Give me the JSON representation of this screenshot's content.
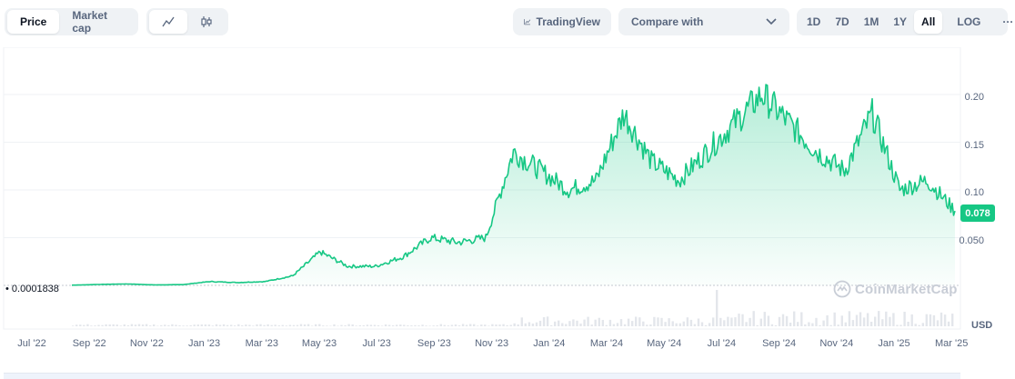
{
  "toolbar": {
    "chart_types": [
      {
        "label": "Price",
        "active": true
      },
      {
        "label": "Market cap",
        "active": false
      }
    ],
    "styles": [
      {
        "icon": "line-chart-icon",
        "active": true
      },
      {
        "icon": "candlestick-icon",
        "active": false
      }
    ],
    "tradingview_label": "TradingView",
    "compare_label": "Compare with",
    "ranges": [
      {
        "label": "1D",
        "active": false
      },
      {
        "label": "7D",
        "active": false
      },
      {
        "label": "1M",
        "active": false
      },
      {
        "label": "1Y",
        "active": false
      },
      {
        "label": "All",
        "active": true
      }
    ],
    "log_label": "LOG",
    "more_label": "···"
  },
  "chart": {
    "current_price": "0.078",
    "start_price": "0.0001838",
    "currency": "USD",
    "watermark": "CoinMarketCap",
    "accent_color": "#16c784"
  },
  "chart_data": {
    "type": "area",
    "y_ticks": [
      "0.20",
      "0.15",
      "0.10",
      "0.050"
    ],
    "x_ticks": [
      "Jul '22",
      "Sep '22",
      "Nov '22",
      "Jan '23",
      "Mar '23",
      "May '23",
      "Jul '23",
      "Sep '23",
      "Nov '23",
      "Jan '24",
      "Mar '24",
      "May '24",
      "Jul '24",
      "Sep '24",
      "Nov '24",
      "Jan '25",
      "Mar '25"
    ],
    "ylim": [
      0,
      0.24
    ],
    "grid": true,
    "x": [
      "2022-07",
      "2022-08",
      "2022-09",
      "2022-10",
      "2022-11",
      "2022-12",
      "2023-01",
      "2023-02",
      "2023-03",
      "2023-04",
      "2023-05",
      "2023-06",
      "2023-07",
      "2023-08",
      "2023-09",
      "2023-10",
      "2023-11",
      "2023-12",
      "2024-01",
      "2024-02",
      "2024-03",
      "2024-04",
      "2024-05",
      "2024-06",
      "2024-07",
      "2024-08",
      "2024-09",
      "2024-10",
      "2024-11",
      "2024-12",
      "2025-01",
      "2025-02",
      "2025-03"
    ],
    "values": [
      0.0002,
      0.001,
      0.0015,
      0.0005,
      0.0008,
      0.004,
      0.003,
      0.004,
      0.01,
      0.035,
      0.02,
      0.02,
      0.03,
      0.05,
      0.045,
      0.05,
      0.14,
      0.12,
      0.1,
      0.11,
      0.18,
      0.13,
      0.11,
      0.14,
      0.17,
      0.2,
      0.17,
      0.14,
      0.12,
      0.18,
      0.1,
      0.11,
      0.078
    ]
  }
}
